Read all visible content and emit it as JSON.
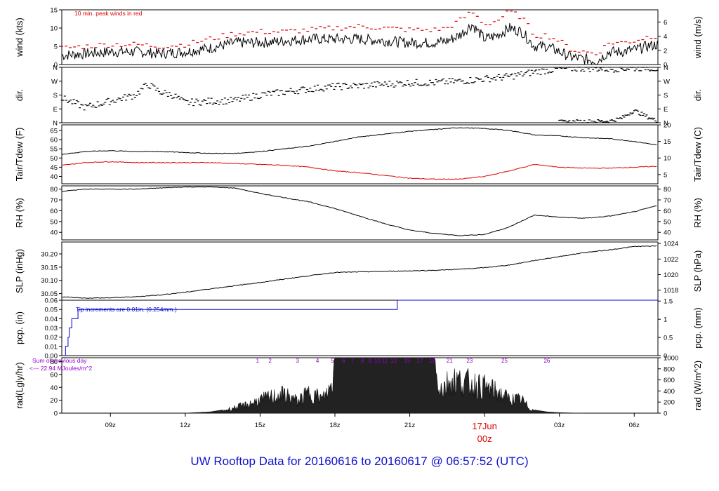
{
  "title": "UW Rooftop Data for 20160616  to  20160617 @ 06:57:52  (UTC)",
  "colors": {
    "ink": "#000000",
    "accent_red": "#dd0000",
    "blue": "#0000cc",
    "purple": "#9900cc"
  },
  "x_axis": {
    "ticks": [
      {
        "hour": 9,
        "label": "09z"
      },
      {
        "hour": 12,
        "label": "12z"
      },
      {
        "hour": 15,
        "label": "15z"
      },
      {
        "hour": 18,
        "label": "18z"
      },
      {
        "hour": 21,
        "label": "21z"
      },
      {
        "hour": 27,
        "label": "03z"
      },
      {
        "hour": 30,
        "label": "06z"
      }
    ],
    "midnight": {
      "hour": 24,
      "date_label": "17Jun",
      "time_label": "00z"
    },
    "range_hours": [
      7.05,
      30.95
    ]
  },
  "chart_data": [
    {
      "type": "line",
      "key": "wind",
      "ylabel_left": "wind (kts)",
      "ylabel_right": "wind (m/s)",
      "ylim": [
        0,
        15
      ],
      "yticks_left": [
        "0",
        "5",
        "10",
        "15"
      ],
      "yticks_left_values": [
        0,
        5,
        10,
        15
      ],
      "right_ylim": [
        0,
        7.72
      ],
      "yticks_right": [
        "0",
        "2",
        "4",
        "6"
      ],
      "yticks_right_values": [
        0,
        2,
        4,
        6
      ],
      "annotation": "10 min. peak winds in red",
      "series": [
        {
          "role": "wind",
          "x": [
            7.05,
            8,
            9,
            10,
            11,
            12,
            13,
            14,
            15,
            16,
            17,
            18,
            19,
            20,
            21,
            22,
            22.5,
            23,
            23.5,
            24,
            24.5,
            25,
            25.5,
            26,
            26.5,
            27,
            27.5,
            28,
            28.5,
            29,
            29.5,
            30,
            30.5,
            30.95
          ],
          "values": [
            2.5,
            3,
            3.5,
            3.5,
            3,
            3.5,
            4.5,
            6,
            6,
            6.5,
            7,
            7,
            7,
            6.5,
            6,
            6,
            6.5,
            8,
            11,
            7,
            8,
            10,
            9,
            5,
            5,
            3.5,
            2,
            1.5,
            1,
            3.5,
            3.5,
            4,
            5,
            5.5
          ]
        },
        {
          "role": "peak",
          "x": [
            7.05,
            8,
            9,
            10,
            11,
            12,
            13,
            14,
            15,
            16,
            17,
            18,
            19,
            20,
            21,
            22,
            22.5,
            23,
            23.5,
            24,
            24.5,
            25,
            25.5,
            26,
            26.5,
            27,
            27.5,
            28,
            28.5,
            29,
            29.5,
            30,
            30.5,
            30.95
          ],
          "values": [
            4.5,
            5,
            5.5,
            5.5,
            5,
            5.5,
            7,
            8.5,
            9,
            9,
            9.5,
            10,
            10.5,
            10,
            9.5,
            9.5,
            10,
            12,
            14.5,
            11,
            12,
            14.5,
            13,
            8,
            8,
            6.5,
            4,
            3.5,
            3,
            6,
            6,
            6.5,
            7.5,
            8
          ]
        }
      ]
    },
    {
      "type": "scatter",
      "key": "dir",
      "ylabel_left": "dir.",
      "ylabel_right": "dir.",
      "ylim": [
        0,
        360
      ],
      "yticks_left": [
        "N",
        "E",
        "S",
        "W",
        "N"
      ],
      "yticks_left_values": [
        0,
        90,
        180,
        270,
        360
      ],
      "yticks_right": [
        "N",
        "E",
        "S",
        "W",
        "N"
      ],
      "yticks_right_values": [
        0,
        90,
        180,
        270,
        360
      ],
      "series": [
        {
          "role": "direction",
          "x": [
            7.05,
            8,
            9,
            10,
            10.5,
            11,
            11.5,
            12,
            13,
            14,
            15,
            16,
            17,
            18,
            19,
            20,
            21,
            22,
            23,
            24,
            25,
            26,
            27,
            28,
            29,
            30,
            30.5,
            30.95
          ],
          "values": [
            160,
            100,
            140,
            180,
            250,
            200,
            180,
            130,
            140,
            145,
            180,
            200,
            220,
            235,
            240,
            250,
            260,
            260,
            270,
            285,
            300,
            330,
            350,
            355,
            350,
            355,
            360,
            350
          ]
        },
        {
          "role": "direction-wrap",
          "x": [
            27,
            28,
            29,
            29.5,
            30,
            30.5,
            30.95
          ],
          "values": [
            5,
            8,
            10,
            30,
            80,
            40,
            10
          ]
        }
      ]
    },
    {
      "type": "line",
      "key": "temp",
      "ylabel_left": "Tair/Tdew (F)",
      "ylabel_right": "Tair/Tdew (C)",
      "ylim": [
        36,
        68
      ],
      "yticks_left": [
        "40",
        "45",
        "50",
        "55",
        "60",
        "65"
      ],
      "yticks_left_values": [
        40,
        45,
        50,
        55,
        60,
        65
      ],
      "right_ylim": [
        2.22,
        20
      ],
      "yticks_right": [
        "5",
        "10",
        "15",
        "20"
      ],
      "yticks_right_values": [
        5,
        10,
        15,
        20
      ],
      "series": [
        {
          "role": "air-temp",
          "x": [
            7.05,
            8,
            9,
            10,
            11,
            12,
            13,
            14,
            15,
            16,
            17,
            18,
            19,
            20,
            21,
            22,
            23,
            24,
            25,
            26,
            27,
            28,
            29,
            30,
            30.95
          ],
          "values": [
            52,
            53.5,
            54,
            53.5,
            53.5,
            53,
            52.5,
            52.5,
            53.5,
            55,
            56.5,
            59,
            61.5,
            63,
            64.5,
            65.5,
            66.5,
            66,
            65,
            62.5,
            62,
            61,
            60.5,
            59,
            57
          ]
        },
        {
          "role": "dew-point",
          "x": [
            7.05,
            8,
            9,
            10,
            11,
            12,
            13,
            14,
            15,
            16,
            17,
            18,
            19,
            20,
            21,
            22,
            23,
            24,
            25,
            26,
            27,
            28,
            29,
            30,
            30.95
          ],
          "values": [
            46,
            47.5,
            48,
            47.5,
            47.5,
            47.5,
            47.5,
            47,
            46.5,
            46,
            45,
            43,
            42,
            40.5,
            39,
            38.5,
            38.5,
            40,
            43,
            46.5,
            45,
            44.5,
            44.5,
            45,
            45.5
          ]
        }
      ]
    },
    {
      "type": "line",
      "key": "rh",
      "ylabel_left": "RH (%)",
      "ylabel_right": "RH (%)",
      "ylim": [
        33,
        83
      ],
      "yticks_left": [
        "40",
        "50",
        "60",
        "70",
        "80"
      ],
      "yticks_left_values": [
        40,
        50,
        60,
        70,
        80
      ],
      "yticks_right": [
        "40",
        "50",
        "60",
        "70",
        "80"
      ],
      "yticks_right_values": [
        40,
        50,
        60,
        70,
        80
      ],
      "series": [
        {
          "role": "rh",
          "x": [
            7.05,
            8,
            9,
            10,
            11,
            12,
            13,
            14,
            15,
            16,
            17,
            18,
            19,
            20,
            21,
            22,
            23,
            24,
            25,
            26,
            27,
            28,
            29,
            30,
            30.95
          ],
          "values": [
            78,
            80,
            80,
            80,
            81,
            82,
            82,
            81,
            76,
            72,
            68,
            62,
            55,
            48,
            42,
            39,
            37,
            38,
            45,
            56,
            54,
            53,
            55,
            59,
            65
          ]
        }
      ]
    },
    {
      "type": "line",
      "key": "slp",
      "ylabel_left": "SLP (inHg)",
      "ylabel_right": "SLP (hPa)",
      "ylim": [
        30.025,
        30.245
      ],
      "yticks_left": [
        "30.05",
        "30.10",
        "30.15",
        "30.20"
      ],
      "yticks_left_values": [
        30.05,
        30.1,
        30.15,
        30.2
      ],
      "right_ylim": [
        1016.7,
        1024.2
      ],
      "yticks_right": [
        "1018",
        "1020",
        "1022",
        "1024"
      ],
      "yticks_right_values": [
        1018,
        1020,
        1022,
        1024
      ],
      "series": [
        {
          "role": "slp",
          "x": [
            7.05,
            8,
            9,
            10,
            11,
            12,
            13,
            14,
            15,
            16,
            17,
            18,
            19,
            20,
            21,
            22,
            23,
            24,
            25,
            26,
            27,
            28,
            29,
            30,
            30.95
          ],
          "values": [
            30.038,
            30.033,
            30.034,
            30.038,
            30.045,
            30.055,
            30.068,
            30.08,
            30.092,
            30.105,
            30.118,
            30.13,
            30.132,
            30.134,
            30.136,
            30.138,
            30.142,
            30.148,
            30.158,
            30.175,
            30.19,
            30.205,
            30.215,
            30.228,
            30.23
          ]
        }
      ]
    },
    {
      "type": "line",
      "key": "pcp",
      "ylabel_left": "pcp. (in)",
      "ylabel_right": "pcp. (mm)",
      "ylim": [
        0,
        0.06
      ],
      "yticks_left": [
        "0.00",
        "0.01",
        "0.02",
        "0.03",
        "0.04",
        "0.05",
        "0.06"
      ],
      "yticks_left_values": [
        0,
        0.01,
        0.02,
        0.03,
        0.04,
        0.05,
        0.06
      ],
      "right_ylim": [
        0,
        1.524
      ],
      "yticks_right": [
        "0",
        "0.5",
        "1",
        "1.5"
      ],
      "yticks_right_values": [
        0,
        0.5,
        1,
        1.5
      ],
      "annotation": "Tip increments are 0.01in. (0.254mm.)",
      "series": [
        {
          "role": "precip",
          "x": [
            7.1,
            7.2,
            7.2,
            7.3,
            7.3,
            7.35,
            7.35,
            7.45,
            7.45,
            7.7,
            7.7,
            20.5,
            20.5,
            30.95
          ],
          "values": [
            0,
            0,
            0.01,
            0.01,
            0.02,
            0.02,
            0.03,
            0.03,
            0.04,
            0.04,
            0.05,
            0.05,
            0.06,
            0.06
          ]
        }
      ]
    },
    {
      "type": "area",
      "key": "rad",
      "ylabel_left": "rad(Lgly/hr)",
      "ylabel_right": "rad (W/m^2)",
      "ylim": [
        0,
        86
      ],
      "yticks_left": [
        "0",
        "20",
        "40",
        "60",
        "80"
      ],
      "yticks_left_values": [
        0,
        20,
        40,
        60,
        80
      ],
      "right_ylim": [
        0,
        1000
      ],
      "yticks_right": [
        "0",
        "200",
        "400",
        "600",
        "800",
        "1000"
      ],
      "yticks_right_values": [
        0,
        200,
        400,
        600,
        800,
        1000
      ],
      "annotation_lines": [
        "Sum of previous day",
        "<--- 22.94 MJoules/m^2"
      ],
      "hour_marks": [
        {
          "hour": 14.9,
          "label": "1"
        },
        {
          "hour": 15.4,
          "label": "2"
        },
        {
          "hour": 16.5,
          "label": "3"
        },
        {
          "hour": 17.3,
          "label": "4"
        },
        {
          "hour": 17.9,
          "label": "5"
        },
        {
          "hour": 18.35,
          "label": "6"
        },
        {
          "hour": 18.7,
          "label": "7"
        },
        {
          "hour": 19.1,
          "label": "8"
        },
        {
          "hour": 19.4,
          "label": "9"
        },
        {
          "hour": 19.7,
          "label": "10"
        },
        {
          "hour": 20.0,
          "label": "11"
        },
        {
          "hour": 20.35,
          "label": "12"
        },
        {
          "hour": 20.9,
          "label": "15"
        },
        {
          "hour": 21.4,
          "label": "17"
        },
        {
          "hour": 21.9,
          "label": "19"
        },
        {
          "hour": 22.6,
          "label": "21"
        },
        {
          "hour": 23.4,
          "label": "23"
        },
        {
          "hour": 24.8,
          "label": "25"
        },
        {
          "hour": 26.5,
          "label": "26"
        }
      ],
      "series": [
        {
          "role": "radiation",
          "x": [
            12.0,
            13.0,
            13.5,
            14.0,
            14.5,
            15.0,
            15.5,
            16.0,
            16.5,
            17.0,
            17.5,
            17.8,
            18.0,
            18.5,
            19.0,
            20.0,
            21.0,
            22.0,
            22.3,
            22.6,
            23.0,
            23.5,
            24.0,
            24.5,
            25.0,
            25.5,
            25.8,
            26.0,
            26.5,
            27.0,
            27.5,
            28.0
          ],
          "values": [
            0,
            2,
            5,
            12,
            18,
            28,
            35,
            40,
            25,
            45,
            30,
            50,
            88,
            89,
            89,
            88,
            87,
            85,
            50,
            70,
            68,
            62,
            55,
            45,
            30,
            28,
            10,
            5,
            2,
            0.8,
            0.3,
            0
          ]
        }
      ]
    }
  ]
}
